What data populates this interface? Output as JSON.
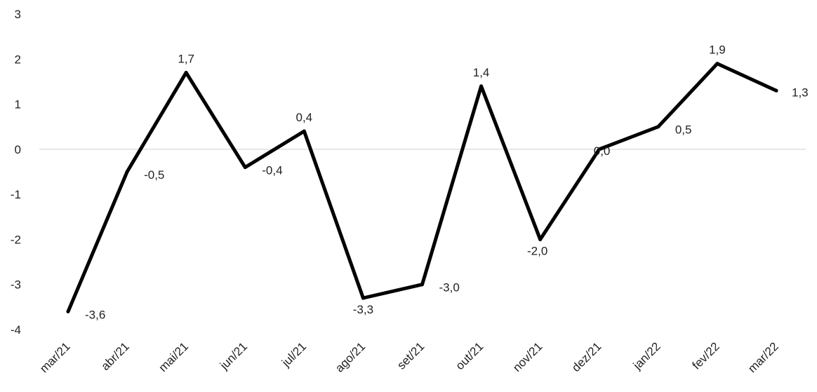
{
  "chart_data": {
    "type": "line",
    "title": "",
    "xlabel": "",
    "ylabel": "",
    "categories": [
      "mar/21",
      "abr/21",
      "mai/21",
      "jun/21",
      "jul/21",
      "ago/21",
      "set/21",
      "out/21",
      "nov/21",
      "dez/21",
      "jan/22",
      "fev/22",
      "mar/22"
    ],
    "series": [
      {
        "values": [
          -3.6,
          -0.5,
          1.7,
          -0.4,
          0.4,
          -3.3,
          -3.0,
          1.4,
          -2.0,
          0.0,
          0.5,
          1.9,
          1.3
        ],
        "data_labels": [
          "-3,6",
          "-0,5",
          "1,7",
          "-0,4",
          "0,4",
          "-3,3",
          "-3,0",
          "1,4",
          "-2,0",
          "0,0",
          "0,5",
          "1,9",
          "1,3"
        ],
        "color": "#000000"
      }
    ],
    "ylim": [
      -4,
      3
    ],
    "yticks": [
      3,
      2,
      1,
      0,
      -1,
      -2,
      -3,
      -4
    ],
    "ytick_labels": [
      "3",
      "2",
      "1",
      "0",
      "-1",
      "-2",
      "-3",
      "-4"
    ],
    "zero_line": true,
    "grid": false,
    "legend": "none",
    "zero_line_color": "#d9d9d9"
  }
}
